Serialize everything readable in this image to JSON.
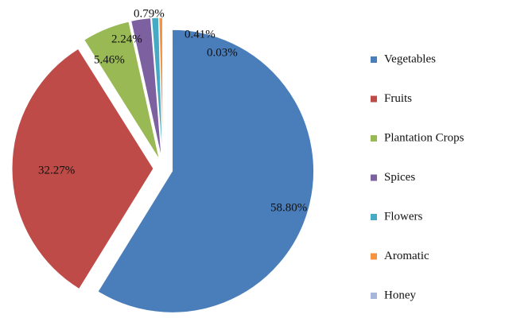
{
  "chart_data": {
    "type": "pie",
    "categories": [
      "Vegetables",
      "Fruits",
      "Plantation Crops",
      "Spices",
      "Flowers",
      "Aromatic",
      "Honey"
    ],
    "values": [
      58.8,
      32.27,
      5.46,
      2.24,
      0.79,
      0.41,
      0.03
    ],
    "value_labels": [
      "58.80%",
      "32.27%",
      "5.46%",
      "2.24%",
      "0.79%",
      "0.41%",
      "0.03%"
    ],
    "colors": [
      "#4a7ebb",
      "#be4b48",
      "#98b954",
      "#7d60a0",
      "#46aac5",
      "#f69240",
      "#a6b7d9"
    ],
    "legend": "right"
  }
}
